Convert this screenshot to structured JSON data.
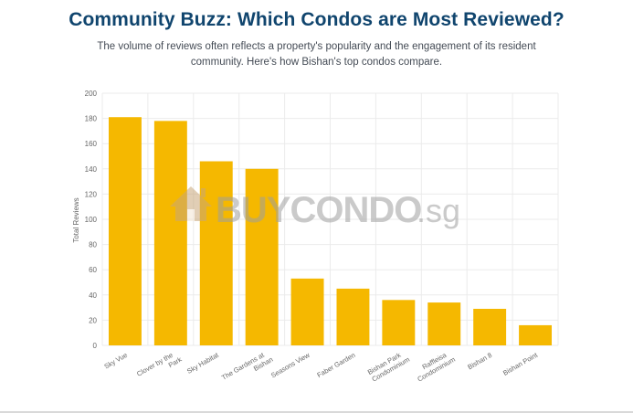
{
  "header": {
    "title": "Community Buzz: Which Condos are Most Reviewed?",
    "subtitle": "The volume of reviews often reflects a property's popularity and the engagement of its resident community. Here's how Bishan's top condos compare."
  },
  "watermark": {
    "text_main": "BUYCONDO",
    "text_suffix": ".sg",
    "icon": "house-icon"
  },
  "colors": {
    "bar": "#f5b800",
    "title": "#10456e",
    "grid": "#ebebeb",
    "axis_text": "#666666"
  },
  "chart_data": {
    "type": "bar",
    "categories": [
      [
        "Sky Vue"
      ],
      [
        "Clover by the",
        "Park"
      ],
      [
        "Sky Habitat"
      ],
      [
        "The Gardens at",
        "Bishan"
      ],
      [
        "Seasons View"
      ],
      [
        "Faber Garden"
      ],
      [
        "Bishan Park",
        "Condominium"
      ],
      [
        "Raffleisa",
        "Condominium"
      ],
      [
        "Bishan 8"
      ],
      [
        "Bishan Point"
      ]
    ],
    "values": [
      181,
      178,
      146,
      140,
      53,
      45,
      36,
      34,
      29,
      16
    ],
    "xlabel": "",
    "ylabel": "Total Reviews",
    "ylim": [
      0,
      200
    ],
    "yticks": [
      0,
      20,
      40,
      60,
      80,
      100,
      120,
      140,
      160,
      180,
      200
    ],
    "grid": true,
    "legend": "none"
  }
}
